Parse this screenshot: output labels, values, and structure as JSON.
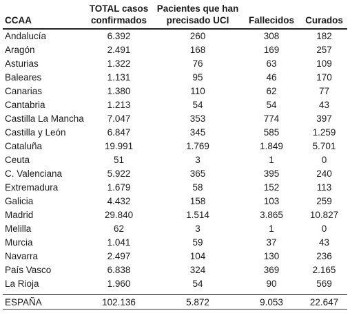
{
  "table": {
    "headers": [
      [
        "",
        "CCAA"
      ],
      [
        "TOTAL casos",
        "confirmados"
      ],
      [
        "Pacientes que han",
        "precisado UCI"
      ],
      [
        "",
        "Fallecidos"
      ],
      [
        "",
        "Curados"
      ]
    ],
    "rows": [
      [
        "Andalucía",
        "6.392",
        "260",
        "308",
        "182"
      ],
      [
        "Aragón",
        "2.491",
        "168",
        "169",
        "257"
      ],
      [
        "Asturias",
        "1.322",
        "76",
        "63",
        "109"
      ],
      [
        "Baleares",
        "1.131",
        "95",
        "46",
        "170"
      ],
      [
        "Canarias",
        "1.380",
        "110",
        "62",
        "77"
      ],
      [
        "Cantabria",
        "1.213",
        "54",
        "54",
        "43"
      ],
      [
        "Castilla La Mancha",
        "7.047",
        "353",
        "774",
        "397"
      ],
      [
        "Castilla y León",
        "6.847",
        "345",
        "585",
        "1.259"
      ],
      [
        "Cataluña",
        "19.991",
        "1.769",
        "1.849",
        "5.701"
      ],
      [
        "Ceuta",
        "51",
        "3",
        "1",
        "0"
      ],
      [
        "C. Valenciana",
        "5.922",
        "365",
        "395",
        "240"
      ],
      [
        "Extremadura",
        "1.679",
        "58",
        "152",
        "113"
      ],
      [
        "Galicia",
        "4.432",
        "158",
        "103",
        "259"
      ],
      [
        "Madrid",
        "29.840",
        "1.514",
        "3.865",
        "10.827"
      ],
      [
        "Melilla",
        "62",
        "3",
        "1",
        "0"
      ],
      [
        "Murcia",
        "1.041",
        "59",
        "37",
        "43"
      ],
      [
        "Navarra",
        "2.497",
        "104",
        "130",
        "236"
      ],
      [
        "País Vasco",
        "6.838",
        "324",
        "369",
        "2.165"
      ],
      [
        "La Rioja",
        "1.960",
        "54",
        "90",
        "569"
      ]
    ],
    "total": [
      "ESPAÑA",
      "102.136",
      "5.872",
      "9.053",
      "22.647"
    ]
  }
}
